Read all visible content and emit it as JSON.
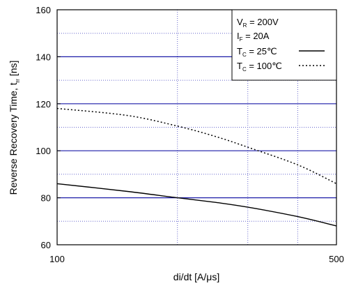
{
  "chart_data": {
    "type": "line",
    "title": "",
    "xlabel": {
      "prefix": "di/dt  [A/",
      "mu": "μ",
      "suffix": "s]"
    },
    "ylabel": {
      "main": "Reverse Recovery Time, t",
      "sub": "rr",
      "units": " [ns]"
    },
    "x_scale": "log",
    "xlim": [
      100,
      500
    ],
    "ylim": [
      60,
      160
    ],
    "x_tick_labels": [
      "100",
      "500"
    ],
    "x_tick_values": [
      100,
      500
    ],
    "x_grid_values": [
      200,
      300,
      400
    ],
    "y_major_ticks": [
      60,
      80,
      100,
      120,
      140,
      160
    ],
    "y_minor_grid": [
      70,
      90,
      110,
      130,
      150
    ],
    "grid": true,
    "legend": {
      "placement": "top-right",
      "conditions": [
        {
          "main": "V",
          "sub": "R",
          "rest": " = 200V"
        },
        {
          "main": "I",
          "sub": "F",
          "rest": " = 20A"
        }
      ],
      "entries": [
        {
          "main": "T",
          "sub": "C",
          "rest": " =   25℃",
          "style": "solid"
        },
        {
          "main": "T",
          "sub": "C",
          "rest": " = 100℃",
          "style": "dotted"
        }
      ]
    },
    "series": [
      {
        "style": "solid",
        "x": [
          100,
          150,
          200,
          250,
          300,
          400,
          500
        ],
        "y": [
          86,
          82.7,
          80,
          78,
          76,
          72,
          68
        ]
      },
      {
        "style": "dotted",
        "x": [
          100,
          150,
          200,
          250,
          300,
          400,
          500
        ],
        "y": [
          118,
          115,
          110.5,
          106,
          101.5,
          94,
          86
        ]
      }
    ]
  },
  "colors": {
    "major_grid": "#1a1aa8",
    "minor_grid": "#6666cc",
    "line": "#000000",
    "frame": "#000000"
  }
}
